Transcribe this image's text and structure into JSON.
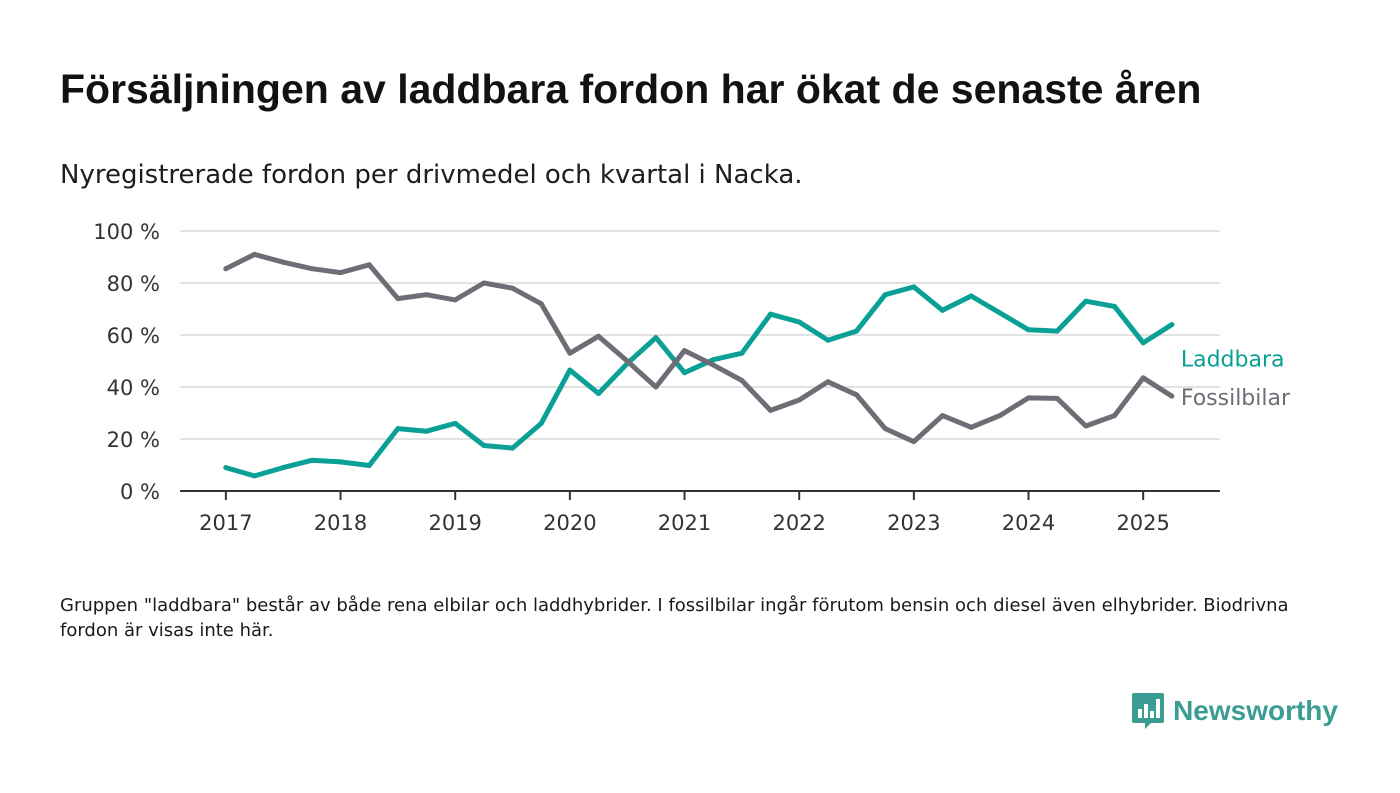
{
  "title": "Försäljningen av laddbara fordon har ökat de senaste åren",
  "subtitle": "Nyregistrerade fordon per drivmedel och kvartal i Nacka.",
  "footnote": "Gruppen \"laddbara\" består av både rena elbilar och laddhybrider. I fossilbilar ingår förutom bensin och diesel även elhybrider. Biodrivna fordon är visas inte här.",
  "brand": {
    "name": "Newsworthy",
    "color": "#3a9c93",
    "icon": "bar-chart-speech-bubble-icon"
  },
  "chart_data": {
    "type": "line",
    "title": "",
    "xlabel": "",
    "ylabel": "",
    "x": [
      2017.0,
      2017.25,
      2017.5,
      2017.75,
      2018.0,
      2018.25,
      2018.5,
      2018.75,
      2019.0,
      2019.25,
      2019.5,
      2019.75,
      2020.0,
      2020.25,
      2020.5,
      2020.75,
      2021.0,
      2021.25,
      2021.5,
      2021.75,
      2022.0,
      2022.25,
      2022.5,
      2022.75,
      2023.0,
      2023.25,
      2023.5,
      2023.75,
      2024.0,
      2024.25,
      2024.5,
      2024.75,
      2025.0,
      2025.25
    ],
    "xlim": [
      2016.6,
      2025.67
    ],
    "ylim": [
      0,
      100
    ],
    "x_ticks": [
      2017,
      2018,
      2019,
      2020,
      2021,
      2022,
      2023,
      2024,
      2025
    ],
    "x_tick_labels": [
      "2017",
      "2018",
      "2019",
      "2020",
      "2021",
      "2022",
      "2023",
      "2024",
      "2025"
    ],
    "y_ticks": [
      0,
      20,
      40,
      60,
      80,
      100
    ],
    "y_tick_labels": [
      "0 %",
      "20 %",
      "40 %",
      "60 %",
      "80 %",
      "100 %"
    ],
    "grid": true,
    "legend": "direct labels at line ends (right)",
    "series": [
      {
        "name": "Laddbara",
        "color": "#0aa095",
        "values": [
          9,
          5.8,
          9,
          11.8,
          11.2,
          9.8,
          24,
          23,
          26,
          17.5,
          16.5,
          26,
          46.5,
          37.5,
          49,
          59,
          45.5,
          50.5,
          53,
          68,
          65,
          58,
          61.5,
          75.5,
          78.5,
          69.5,
          75,
          68.5,
          62,
          61.5,
          73,
          71,
          57,
          64
        ]
      },
      {
        "name": "Fossilbilar",
        "color": "#6e6d75",
        "values": [
          85.5,
          91,
          88,
          85.5,
          84,
          87,
          74,
          75.5,
          73.5,
          80,
          78,
          72,
          53,
          59.5,
          50,
          40,
          54,
          48.5,
          42.5,
          31,
          35,
          42,
          37,
          24,
          19,
          29,
          24.5,
          29,
          35.8,
          35.6,
          25,
          29,
          43.5,
          36.5
        ]
      }
    ]
  }
}
